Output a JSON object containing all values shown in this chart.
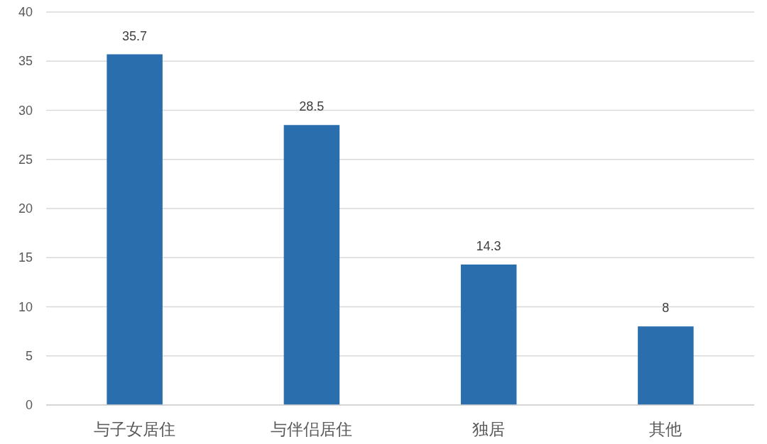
{
  "chart_data": {
    "type": "bar",
    "categories": [
      "与子女居住",
      "与伴侣居住",
      "独居",
      "其他"
    ],
    "values": [
      35.7,
      28.5,
      14.3,
      8
    ],
    "color": "#2a6ead",
    "ylim": [
      0,
      40
    ],
    "yticks": [
      0,
      5,
      10,
      15,
      20,
      25,
      30,
      35,
      40
    ],
    "grid": "y",
    "data_labels": true
  }
}
